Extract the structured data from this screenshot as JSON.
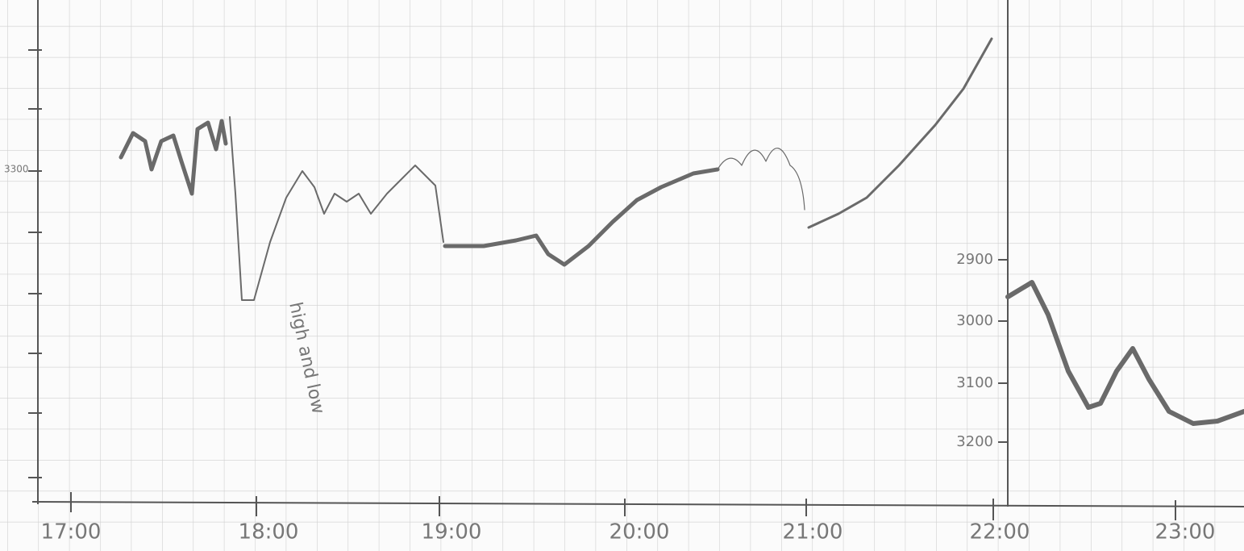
{
  "left_axis": {
    "label": "3300"
  },
  "x_axis": {
    "labels": [
      "17:00",
      "18:00",
      "19:00",
      "20:00",
      "21:00",
      "22:00",
      "23:00"
    ]
  },
  "right_axis": {
    "labels": [
      "2900",
      "3000",
      "3100",
      "3200"
    ]
  },
  "annotation": "high and low"
}
